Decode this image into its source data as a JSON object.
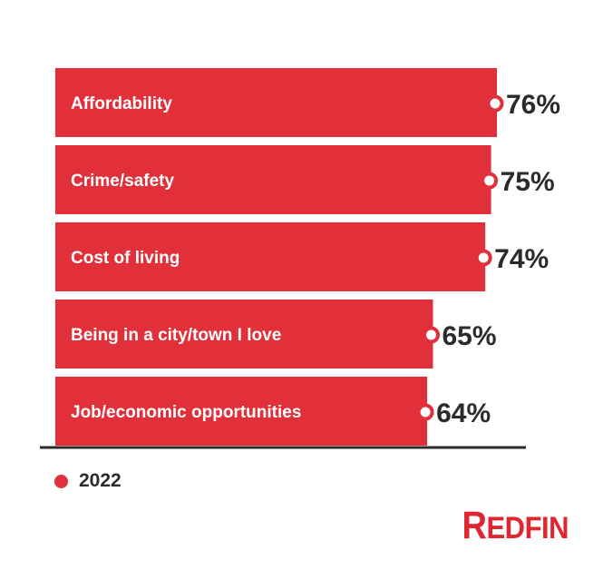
{
  "chart_data": {
    "type": "bar",
    "orientation": "horizontal",
    "categories": [
      "Affordability",
      "Crime/safety",
      "Cost of living",
      "Being in a city/town I love",
      "Job/economic opportunities"
    ],
    "series": [
      {
        "name": "2022",
        "values": [
          76,
          75,
          74,
          65,
          64
        ],
        "value_labels": [
          "76%",
          "75%",
          "74%",
          "65%",
          "64%"
        ],
        "color": "#e1303a"
      }
    ],
    "xlim": [
      0,
      76
    ],
    "grid": false,
    "legend": {
      "position": "bottom-left",
      "entries": [
        "2022"
      ]
    },
    "colors": {
      "bar": "#e1303a",
      "marker_fill": "#ffffff",
      "baseline": "#2b2b2b",
      "label_text": "#ffffff",
      "value_text": "#2b2b2b"
    }
  },
  "brand": {
    "logo_text": "REDFIN",
    "logo_first": "R",
    "logo_rest": "EDFIN",
    "color": "#e1262f"
  }
}
